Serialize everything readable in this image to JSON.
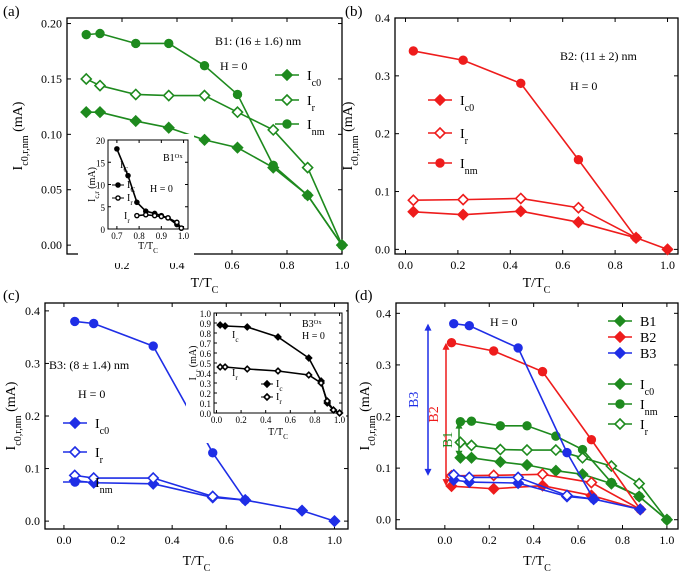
{
  "colors": {
    "green": "#1e8a1e",
    "red": "#ee1c1c",
    "blue": "#1f2ee6",
    "black": "#000000"
  },
  "chart_data": [
    {
      "id": "a",
      "type": "line",
      "panel_label": "(a)",
      "xlabel": "T/T",
      "xlabel_sub": "C",
      "ylabel": "I",
      "ylabel_sub": "c0,r,nm",
      "ylabel_unit": " (mA)",
      "xlim": [
        0,
        1.0
      ],
      "ylim": [
        -0.008,
        0.205
      ],
      "xticks": [
        "0.2",
        "0.4",
        "0.6",
        "0.8",
        "1.0"
      ],
      "yticks": [
        "0.00",
        "0.05",
        "0.10",
        "0.15",
        "0.20"
      ],
      "annotations": {
        "sample": "B1: (16 ± 1.6) nm",
        "field": "H = 0"
      },
      "series": [
        {
          "name": "I",
          "sub": "c0",
          "marker": "diamond-filled",
          "color": "#1e8a1e",
          "x": [
            0.07,
            0.12,
            0.25,
            0.37,
            0.5,
            0.62,
            0.75,
            0.875,
            1.0
          ],
          "y": [
            0.12,
            0.12,
            0.112,
            0.106,
            0.095,
            0.088,
            0.07,
            0.045,
            0.0
          ]
        },
        {
          "name": "I",
          "sub": "r",
          "marker": "diamond-open",
          "color": "#1e8a1e",
          "x": [
            0.07,
            0.12,
            0.25,
            0.37,
            0.5,
            0.62,
            0.75,
            0.875,
            1.0
          ],
          "y": [
            0.15,
            0.144,
            0.136,
            0.135,
            0.135,
            0.12,
            0.104,
            0.07,
            0.0
          ]
        },
        {
          "name": "I",
          "sub": "nm",
          "marker": "circle-filled",
          "color": "#1e8a1e",
          "x": [
            0.07,
            0.12,
            0.25,
            0.37,
            0.5,
            0.62,
            0.75,
            0.875,
            1.0
          ],
          "y": [
            0.19,
            0.191,
            0.182,
            0.182,
            0.162,
            0.136,
            0.072,
            0.045,
            0.0
          ]
        }
      ],
      "inset": {
        "title": "B1",
        "title_sup": "Ox",
        "xlabel": "T/T",
        "xlabel_sub": "C",
        "ylabel": "I",
        "ylabel_sub": "c,r",
        "ylabel_unit": " (mA)",
        "xlim": [
          0.66,
          1.02
        ],
        "ylim": [
          0,
          20
        ],
        "xticks": [
          "0.7",
          "0.8",
          "0.9",
          "1.0"
        ],
        "yticks": [
          "0",
          "5",
          "10",
          "15",
          "20"
        ],
        "field": "H = 0",
        "series": [
          {
            "name": "I",
            "sub": "C",
            "marker": "circle-filled",
            "color": "#000000",
            "x": [
              0.7,
              0.75,
              0.79,
              0.83,
              0.87,
              0.9,
              0.93,
              0.97,
              0.99
            ],
            "y": [
              18.0,
              12.0,
              6.0,
              4.0,
              3.5,
              3.0,
              2.5,
              1.0,
              0.2
            ]
          },
          {
            "name": "I",
            "sub": "r",
            "marker": "circle-open",
            "color": "#000000",
            "x": [
              0.79,
              0.83,
              0.87,
              0.9,
              0.93,
              0.97,
              0.99
            ],
            "y": [
              3.0,
              3.2,
              3.0,
              2.8,
              2.5,
              1.5,
              0.2
            ]
          }
        ]
      }
    },
    {
      "id": "b",
      "type": "line",
      "panel_label": "(b)",
      "xlabel": "T/T",
      "xlabel_sub": "C",
      "ylabel": "I",
      "ylabel_sub": "c0,r,nm",
      "ylabel_unit": " (mA)",
      "xlim": [
        -0.04,
        1.04
      ],
      "ylim": [
        -0.008,
        0.4
      ],
      "xticks": [
        "0.0",
        "0.2",
        "0.4",
        "0.6",
        "0.8",
        "1.0"
      ],
      "yticks": [
        "0.0",
        "0.1",
        "0.2",
        "0.3",
        "0.4"
      ],
      "annotations": {
        "sample": "B2: (11 ± 2) nm",
        "field": "H = 0"
      },
      "series": [
        {
          "name": "I",
          "sub": "c0",
          "marker": "diamond-filled",
          "color": "#ee1c1c",
          "x": [
            0.03,
            0.22,
            0.44,
            0.66,
            0.88,
            1.0
          ],
          "y": [
            0.065,
            0.06,
            0.066,
            0.047,
            0.02,
            0.0
          ]
        },
        {
          "name": "I",
          "sub": "r",
          "marker": "diamond-open",
          "color": "#ee1c1c",
          "x": [
            0.03,
            0.22,
            0.44,
            0.66,
            0.88
          ],
          "y": [
            0.085,
            0.086,
            0.088,
            0.072,
            0.02
          ]
        },
        {
          "name": "I",
          "sub": "nm",
          "marker": "circle-filled",
          "color": "#ee1c1c",
          "x": [
            0.03,
            0.22,
            0.44,
            0.66,
            0.88
          ],
          "y": [
            0.343,
            0.327,
            0.287,
            0.155,
            0.02
          ]
        }
      ]
    },
    {
      "id": "c",
      "type": "line",
      "panel_label": "(c)",
      "xlabel": "T/T",
      "xlabel_sub": "C",
      "ylabel": "I",
      "ylabel_sub": "c0,r,nm",
      "ylabel_unit": " (mA)",
      "xlim": [
        -0.07,
        1.05
      ],
      "ylim": [
        -0.015,
        0.415
      ],
      "xticks": [
        "0.0",
        "0.2",
        "0.4",
        "0.6",
        "0.8",
        "1.0"
      ],
      "yticks": [
        "0.0",
        "0.1",
        "0.2",
        "0.3",
        "0.4"
      ],
      "annotations": {
        "sample": "B3: (8 ± 1.4) nm",
        "field": "H = 0"
      },
      "series": [
        {
          "name": "I",
          "sub": "c0",
          "marker": "diamond-filled",
          "color": "#1f2ee6",
          "x": [
            0.04,
            0.11,
            0.33,
            0.55,
            0.67,
            0.88,
            1.0
          ],
          "y": [
            0.077,
            0.073,
            0.071,
            0.045,
            0.04,
            0.02,
            0.0
          ]
        },
        {
          "name": "I",
          "sub": "r",
          "marker": "diamond-open",
          "color": "#1f2ee6",
          "x": [
            0.04,
            0.11,
            0.33,
            0.55,
            0.67
          ],
          "y": [
            0.087,
            0.082,
            0.082,
            0.047,
            0.04
          ]
        },
        {
          "name": "I",
          "sub": "nm",
          "marker": "circle-filled",
          "color": "#1f2ee6",
          "x": [
            0.04,
            0.11,
            0.33,
            0.55,
            0.67
          ],
          "y": [
            0.38,
            0.376,
            0.333,
            0.13,
            0.04
          ]
        }
      ],
      "inset": {
        "title": "B3",
        "title_sup": "Ox",
        "xlabel": "T/T",
        "xlabel_sub": "C",
        "ylabel": "I",
        "ylabel_sub": "c,r",
        "ylabel_unit": " (mA)",
        "xlim": [
          -0.02,
          1.02
        ],
        "ylim": [
          0,
          1.0
        ],
        "xticks": [
          "0.0",
          "0.2",
          "0.4",
          "0.6",
          "0.8",
          "1.0"
        ],
        "yticks": [
          "0.0",
          "0.1",
          "0.2",
          "0.3",
          "0.4",
          "0.5",
          "0.6",
          "0.7",
          "0.8",
          "0.9",
          "1.0"
        ],
        "field": "H = 0",
        "series": [
          {
            "name": "I",
            "sub": "c",
            "marker": "diamond-filled",
            "color": "#000000",
            "x": [
              0.03,
              0.07,
              0.25,
              0.5,
              0.75,
              0.85,
              0.9,
              0.95,
              1.0
            ],
            "y": [
              0.88,
              0.87,
              0.86,
              0.76,
              0.55,
              0.32,
              0.1,
              0.03,
              0.0
            ]
          },
          {
            "name": "I",
            "sub": "r",
            "marker": "diamond-open",
            "color": "#000000",
            "x": [
              0.03,
              0.07,
              0.25,
              0.5,
              0.75,
              0.85,
              0.9,
              0.95,
              1.0
            ],
            "y": [
              0.46,
              0.46,
              0.44,
              0.42,
              0.38,
              0.3,
              0.12,
              0.03,
              0.0
            ]
          }
        ]
      }
    },
    {
      "id": "d",
      "type": "line",
      "panel_label": "(d)",
      "xlabel": "T/T",
      "xlabel_sub": "C",
      "ylabel": "I",
      "ylabel_sub": "c0,r,nm",
      "ylabel_unit": " (mA)",
      "xlim": [
        -0.22,
        1.05
      ],
      "ylim": [
        -0.018,
        0.42
      ],
      "xticks": [
        "0.0",
        "0.2",
        "0.4",
        "0.6",
        "0.8",
        "1.0"
      ],
      "yticks": [
        "0.0",
        "0.1",
        "0.2",
        "0.3",
        "0.4"
      ],
      "annotations": {
        "field": "H = 0",
        "arrow_b1": "B1",
        "arrow_b2": "B2",
        "arrow_b3": "B3"
      },
      "color_legend": [
        {
          "label": "B1",
          "color": "#1e8a1e"
        },
        {
          "label": "B2",
          "color": "#ee1c1c"
        },
        {
          "label": "B3",
          "color": "#1f2ee6"
        }
      ],
      "marker_legend": [
        {
          "name": "I",
          "sub": "c0",
          "marker": "diamond-filled"
        },
        {
          "name": "I",
          "sub": "nm",
          "marker": "circle-filled"
        },
        {
          "name": "I",
          "sub": "r",
          "marker": "diamond-open"
        }
      ],
      "series": [
        {
          "name": "B1 Ic0",
          "marker": "diamond-filled",
          "color": "#1e8a1e",
          "x": [
            0.07,
            0.12,
            0.25,
            0.37,
            0.5,
            0.62,
            0.75,
            0.875,
            1.0
          ],
          "y": [
            0.12,
            0.12,
            0.112,
            0.106,
            0.095,
            0.088,
            0.07,
            0.045,
            0.0
          ]
        },
        {
          "name": "B1 Ir",
          "marker": "diamond-open",
          "color": "#1e8a1e",
          "x": [
            0.07,
            0.12,
            0.25,
            0.37,
            0.5,
            0.62,
            0.75,
            0.875,
            1.0
          ],
          "y": [
            0.15,
            0.144,
            0.136,
            0.135,
            0.135,
            0.12,
            0.104,
            0.07,
            0.0
          ]
        },
        {
          "name": "B1 Inm",
          "marker": "circle-filled",
          "color": "#1e8a1e",
          "x": [
            0.07,
            0.12,
            0.25,
            0.37,
            0.5,
            0.62,
            0.75,
            0.875,
            1.0
          ],
          "y": [
            0.19,
            0.191,
            0.182,
            0.182,
            0.162,
            0.136,
            0.072,
            0.045,
            0.0
          ]
        },
        {
          "name": "B2 Ic0",
          "marker": "diamond-filled",
          "color": "#ee1c1c",
          "x": [
            0.03,
            0.22,
            0.44,
            0.66,
            0.88
          ],
          "y": [
            0.065,
            0.06,
            0.066,
            0.047,
            0.02
          ]
        },
        {
          "name": "B2 Ir",
          "marker": "diamond-open",
          "color": "#ee1c1c",
          "x": [
            0.03,
            0.22,
            0.44,
            0.66,
            0.88
          ],
          "y": [
            0.085,
            0.086,
            0.088,
            0.072,
            0.02
          ]
        },
        {
          "name": "B2 Inm",
          "marker": "circle-filled",
          "color": "#ee1c1c",
          "x": [
            0.03,
            0.22,
            0.44,
            0.66,
            0.88
          ],
          "y": [
            0.343,
            0.327,
            0.287,
            0.155,
            0.02
          ]
        },
        {
          "name": "B3 Ic0",
          "marker": "diamond-filled",
          "color": "#1f2ee6",
          "x": [
            0.04,
            0.11,
            0.33,
            0.55,
            0.67,
            0.88
          ],
          "y": [
            0.077,
            0.073,
            0.071,
            0.045,
            0.04,
            0.02
          ]
        },
        {
          "name": "B3 Ir",
          "marker": "diamond-open",
          "color": "#1f2ee6",
          "x": [
            0.04,
            0.11,
            0.33,
            0.55,
            0.67
          ],
          "y": [
            0.087,
            0.082,
            0.082,
            0.047,
            0.04
          ]
        },
        {
          "name": "B3 Inm",
          "marker": "circle-filled",
          "color": "#1f2ee6",
          "x": [
            0.04,
            0.11,
            0.33,
            0.55,
            0.67
          ],
          "y": [
            0.38,
            0.376,
            0.333,
            0.13,
            0.04
          ]
        }
      ]
    }
  ]
}
